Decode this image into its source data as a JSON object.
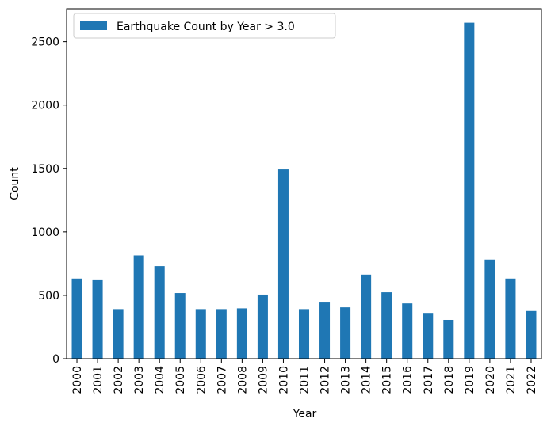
{
  "chart_data": {
    "type": "bar",
    "xlabel": "Year",
    "ylabel": "Count",
    "categories": [
      "2000",
      "2001",
      "2002",
      "2003",
      "2004",
      "2005",
      "2006",
      "2007",
      "2008",
      "2009",
      "2010",
      "2011",
      "2012",
      "2013",
      "2014",
      "2015",
      "2016",
      "2017",
      "2018",
      "2019",
      "2020",
      "2021",
      "2022"
    ],
    "series": [
      {
        "name": "Earthquake Count by Year > 3.0",
        "values": [
          632,
          625,
          391,
          815,
          730,
          518,
          391,
          391,
          397,
          506,
          1492,
          391,
          443,
          405,
          663,
          524,
          436,
          361,
          306,
          2650,
          782,
          632,
          376
        ],
        "color": "#1f77b4"
      }
    ],
    "ylim": [
      0,
      2760
    ],
    "yticks": [
      0,
      500,
      1000,
      1500,
      2000,
      2500
    ],
    "grid": false,
    "legend": "top-left"
  }
}
